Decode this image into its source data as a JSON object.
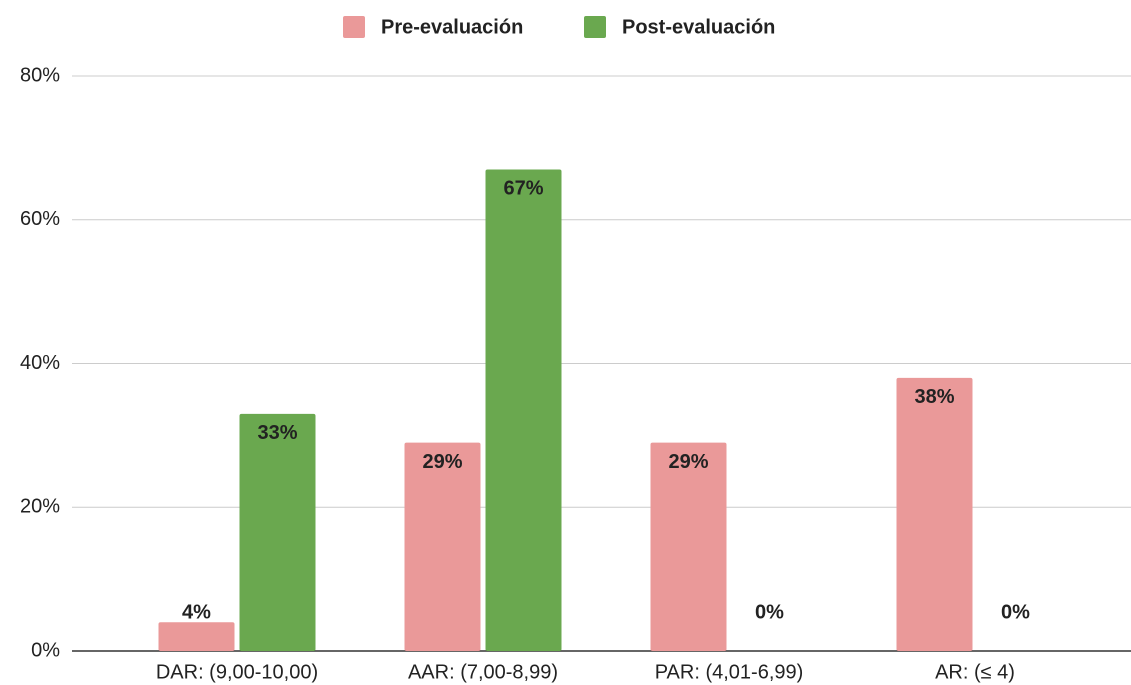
{
  "chart_data": {
    "type": "bar",
    "categories": [
      "DAR: (9,00-10,00)",
      "AAR: (7,00-8,99)",
      "PAR: (4,01-6,99)",
      "AR: (≤ 4)"
    ],
    "series": [
      {
        "name": "Pre-evaluación",
        "color": "#ea9999",
        "values": [
          4,
          29,
          29,
          38
        ],
        "value_labels": [
          "4%",
          "29%",
          "29%",
          "38%"
        ]
      },
      {
        "name": "Post-evaluación",
        "color": "#6aa84f",
        "values": [
          33,
          67,
          0,
          0
        ],
        "value_labels": [
          "33%",
          "67%",
          "0%",
          "0%"
        ]
      }
    ],
    "ylim": [
      0,
      80
    ],
    "yticks": [
      {
        "value": 0,
        "label": "0%"
      },
      {
        "value": 20,
        "label": "20%"
      },
      {
        "value": 40,
        "label": "40%"
      },
      {
        "value": 60,
        "label": "60%"
      },
      {
        "value": 80,
        "label": "80%"
      }
    ],
    "grid": true,
    "legend": "top"
  }
}
